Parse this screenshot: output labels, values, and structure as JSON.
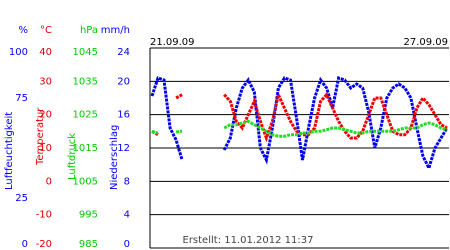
{
  "chart_data": {
    "type": "line",
    "x_labels": [
      "21.09.09",
      "27.09.09"
    ],
    "note": "Erstellt: 11.01.2012 11:37",
    "axes": [
      {
        "unit": "%",
        "title": "Luftfeuchtigkeit",
        "color": "#0000ff",
        "ylim": [
          0,
          100
        ],
        "yticks": [
          0,
          25,
          75,
          100
        ]
      },
      {
        "unit": "°C",
        "title": "Temperatur",
        "color": "#dd0000",
        "ylim": [
          -20,
          40
        ],
        "yticks": [
          -20,
          -10,
          0,
          10,
          20,
          30,
          40
        ]
      },
      {
        "unit": "hPa",
        "title": "Luftdruck",
        "color": "#00cc00",
        "ylim": [
          985,
          1045
        ],
        "yticks": [
          985,
          995,
          1005,
          1015,
          1025,
          1035,
          1045
        ]
      },
      {
        "unit": "mm/h",
        "title": "Niederschlag",
        "color": "#0000ff",
        "ylim": [
          0,
          24
        ],
        "yticks": [
          0,
          4,
          8,
          12,
          16,
          20,
          24
        ]
      }
    ],
    "series": [
      {
        "name": "Luftfeuchtigkeit",
        "axis": 0,
        "color": "#0000ee",
        "values": [
          76,
          85,
          84,
          60,
          54,
          44,
          null,
          null,
          null,
          null,
          null,
          null,
          49,
          55,
          70,
          80,
          84,
          78,
          50,
          44,
          60,
          80,
          85,
          84,
          65,
          44,
          60,
          75,
          84,
          80,
          70,
          85,
          84,
          80,
          82,
          80,
          68,
          50,
          60,
          75,
          80,
          82,
          80,
          75,
          60,
          46,
          40,
          50,
          55,
          60
        ]
      },
      {
        "name": "Temperatur",
        "axis": 1,
        "color": "#ee0000",
        "values": [
          15,
          14,
          null,
          null,
          25,
          26,
          null,
          null,
          null,
          null,
          null,
          null,
          26,
          24,
          18,
          16,
          20,
          24,
          18,
          13,
          18,
          26,
          22,
          18,
          15,
          14,
          14,
          16,
          24,
          26,
          22,
          18,
          15,
          13,
          13,
          15,
          20,
          25,
          25,
          20,
          15,
          14,
          14,
          16,
          22,
          25,
          23,
          20,
          17,
          16
        ]
      },
      {
        "name": "Luftdruck",
        "axis": 2,
        "color": "#22dd22",
        "values": [
          1020,
          1019.5,
          null,
          null,
          1019.8,
          1020,
          null,
          null,
          null,
          null,
          null,
          null,
          1021,
          1022,
          1022,
          1022.5,
          1023,
          1022,
          1021,
          1020,
          1019,
          1018.5,
          1018.5,
          1019,
          1019,
          1019.5,
          1019.5,
          1020,
          1020,
          1020.5,
          1021,
          1021,
          1020.5,
          1020,
          1019.5,
          1019.5,
          1020,
          1020,
          1020,
          1020,
          1020,
          1020.5,
          1021,
          1021,
          1021,
          1022,
          1022.5,
          1022,
          1021,
          1020.5
        ]
      }
    ]
  }
}
